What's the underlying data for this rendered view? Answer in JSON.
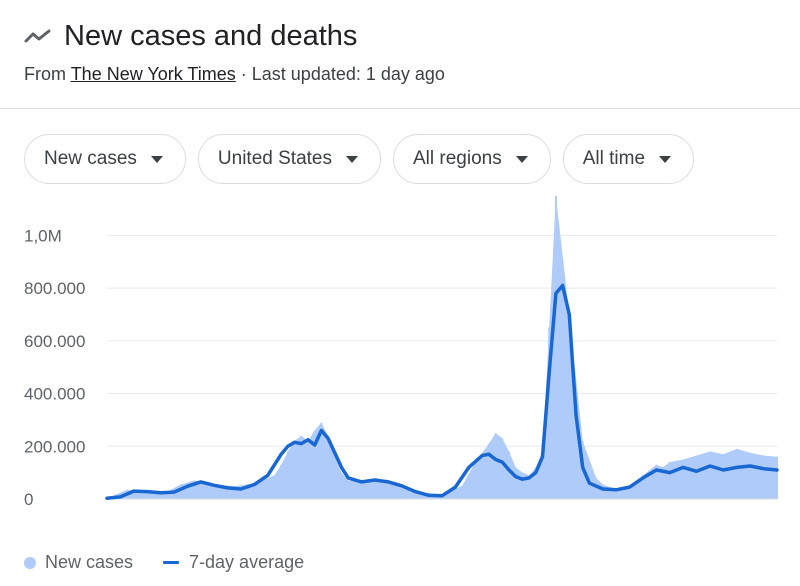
{
  "header": {
    "title": "New cases and deaths",
    "title_icon": "trending-line-icon",
    "source_prefix": "From",
    "source_name": "The New York Times",
    "updated": "· Last updated: 1 day ago"
  },
  "filters": {
    "metric": "New cases",
    "location": "United States",
    "regions": "All regions",
    "period": "All time",
    "caret_icon": "dropdown-caret-icon"
  },
  "colors": {
    "bar": "#aecbfa",
    "line": "#1967d2",
    "grid": "#e8eaed",
    "axis_text": "#5f6368"
  },
  "legend": {
    "cases_label": "New cases",
    "avg_label": "7-day average"
  },
  "chart_data": {
    "type": "area",
    "title": "",
    "xlabel": "",
    "ylabel": "",
    "ylim": [
      0,
      1100000
    ],
    "y_ticks": [
      {
        "value": 0,
        "label": "0"
      },
      {
        "value": 200000,
        "label": "200.000"
      },
      {
        "value": 400000,
        "label": "400.000"
      },
      {
        "value": 600000,
        "label": "600.000"
      },
      {
        "value": 800000,
        "label": "800.000"
      },
      {
        "value": 1000000,
        "label": "1,0M"
      }
    ],
    "grid": true,
    "legend_position": "bottom-left",
    "x_index_range": [
      0,
      100
    ],
    "series": [
      {
        "name": "New cases",
        "kind": "bars",
        "x": [
          0,
          3,
          6,
          9,
          11,
          13,
          16,
          19,
          22,
          25,
          26,
          27,
          28,
          29,
          30,
          31,
          32,
          33,
          34,
          35,
          36,
          38,
          41,
          44,
          47,
          50,
          53,
          55,
          57,
          58,
          59,
          60,
          61,
          62,
          63,
          64,
          65,
          66,
          67,
          69,
          71,
          73,
          74,
          75,
          76,
          77,
          78,
          79,
          80,
          81,
          82,
          83,
          84,
          86,
          88,
          90,
          92,
          94,
          96,
          98,
          100
        ],
        "values": [
          3000,
          35000,
          30000,
          28000,
          55000,
          70000,
          55000,
          48000,
          60000,
          90000,
          130000,
          180000,
          220000,
          240000,
          220000,
          260000,
          290000,
          240000,
          160000,
          100000,
          70000,
          65000,
          72000,
          50000,
          25000,
          15000,
          50000,
          140000,
          210000,
          250000,
          230000,
          180000,
          120000,
          100000,
          90000,
          120000,
          180000,
          650000,
          1150000,
          700000,
          220000,
          80000,
          55000,
          45000,
          40000,
          42000,
          50000,
          65000,
          90000,
          110000,
          130000,
          120000,
          140000,
          150000,
          165000,
          180000,
          170000,
          190000,
          175000,
          165000,
          160000
        ]
      },
      {
        "name": "7-day average",
        "kind": "line",
        "x": [
          0,
          2,
          4,
          6,
          8,
          10,
          12,
          14,
          16,
          18,
          20,
          22,
          24,
          26,
          27,
          28,
          29,
          30,
          31,
          32,
          33,
          34,
          35,
          36,
          38,
          40,
          42,
          44,
          46,
          48,
          50,
          52,
          54,
          56,
          57,
          58,
          59,
          60,
          61,
          62,
          63,
          64,
          65,
          66,
          67,
          68,
          69,
          70,
          71,
          72,
          74,
          76,
          78,
          80,
          82,
          84,
          86,
          88,
          90,
          92,
          94,
          96,
          98,
          100
        ],
        "values": [
          3000,
          8000,
          30000,
          28000,
          24000,
          26000,
          48000,
          65000,
          52000,
          42000,
          38000,
          55000,
          90000,
          170000,
          200000,
          215000,
          210000,
          225000,
          205000,
          260000,
          230000,
          175000,
          120000,
          80000,
          65000,
          72000,
          65000,
          50000,
          28000,
          14000,
          12000,
          45000,
          120000,
          165000,
          170000,
          150000,
          140000,
          110000,
          85000,
          75000,
          80000,
          100000,
          160000,
          480000,
          780000,
          810000,
          700000,
          320000,
          120000,
          60000,
          38000,
          35000,
          45000,
          80000,
          110000,
          100000,
          120000,
          105000,
          125000,
          110000,
          120000,
          125000,
          115000,
          110000
        ]
      }
    ]
  }
}
